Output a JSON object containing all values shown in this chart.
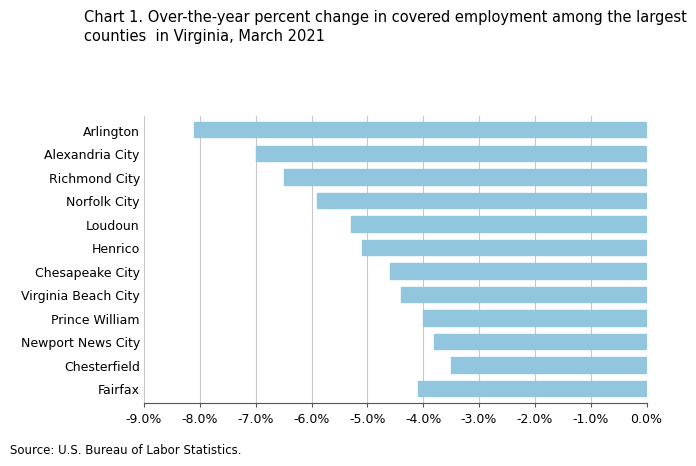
{
  "title": "Chart 1. Over-the-year percent change in covered employment among the largest\ncounties  in Virginia, March 2021",
  "categories": [
    "Arlington",
    "Alexandria City",
    "Richmond City",
    "Norfolk City",
    "Loudoun",
    "Henrico",
    "Chesapeake City",
    "Virginia Beach City",
    "Prince William",
    "Newport News City",
    "Chesterfield",
    "Fairfax"
  ],
  "values": [
    -8.1,
    -7.0,
    -6.5,
    -5.9,
    -5.3,
    -5.1,
    -4.6,
    -4.4,
    -4.0,
    -3.8,
    -3.5,
    -4.1
  ],
  "bar_color": "#92c5de",
  "xlim": [
    -9.0,
    0.0
  ],
  "xticks": [
    -9.0,
    -8.0,
    -7.0,
    -6.0,
    -5.0,
    -4.0,
    -3.0,
    -2.0,
    -1.0,
    0.0
  ],
  "xlabel": "",
  "ylabel": "",
  "source": "Source: U.S. Bureau of Labor Statistics.",
  "title_fontsize": 10.5,
  "tick_fontsize": 9,
  "source_fontsize": 8.5,
  "background_color": "#ffffff",
  "grid_color": "#c8c8c8"
}
